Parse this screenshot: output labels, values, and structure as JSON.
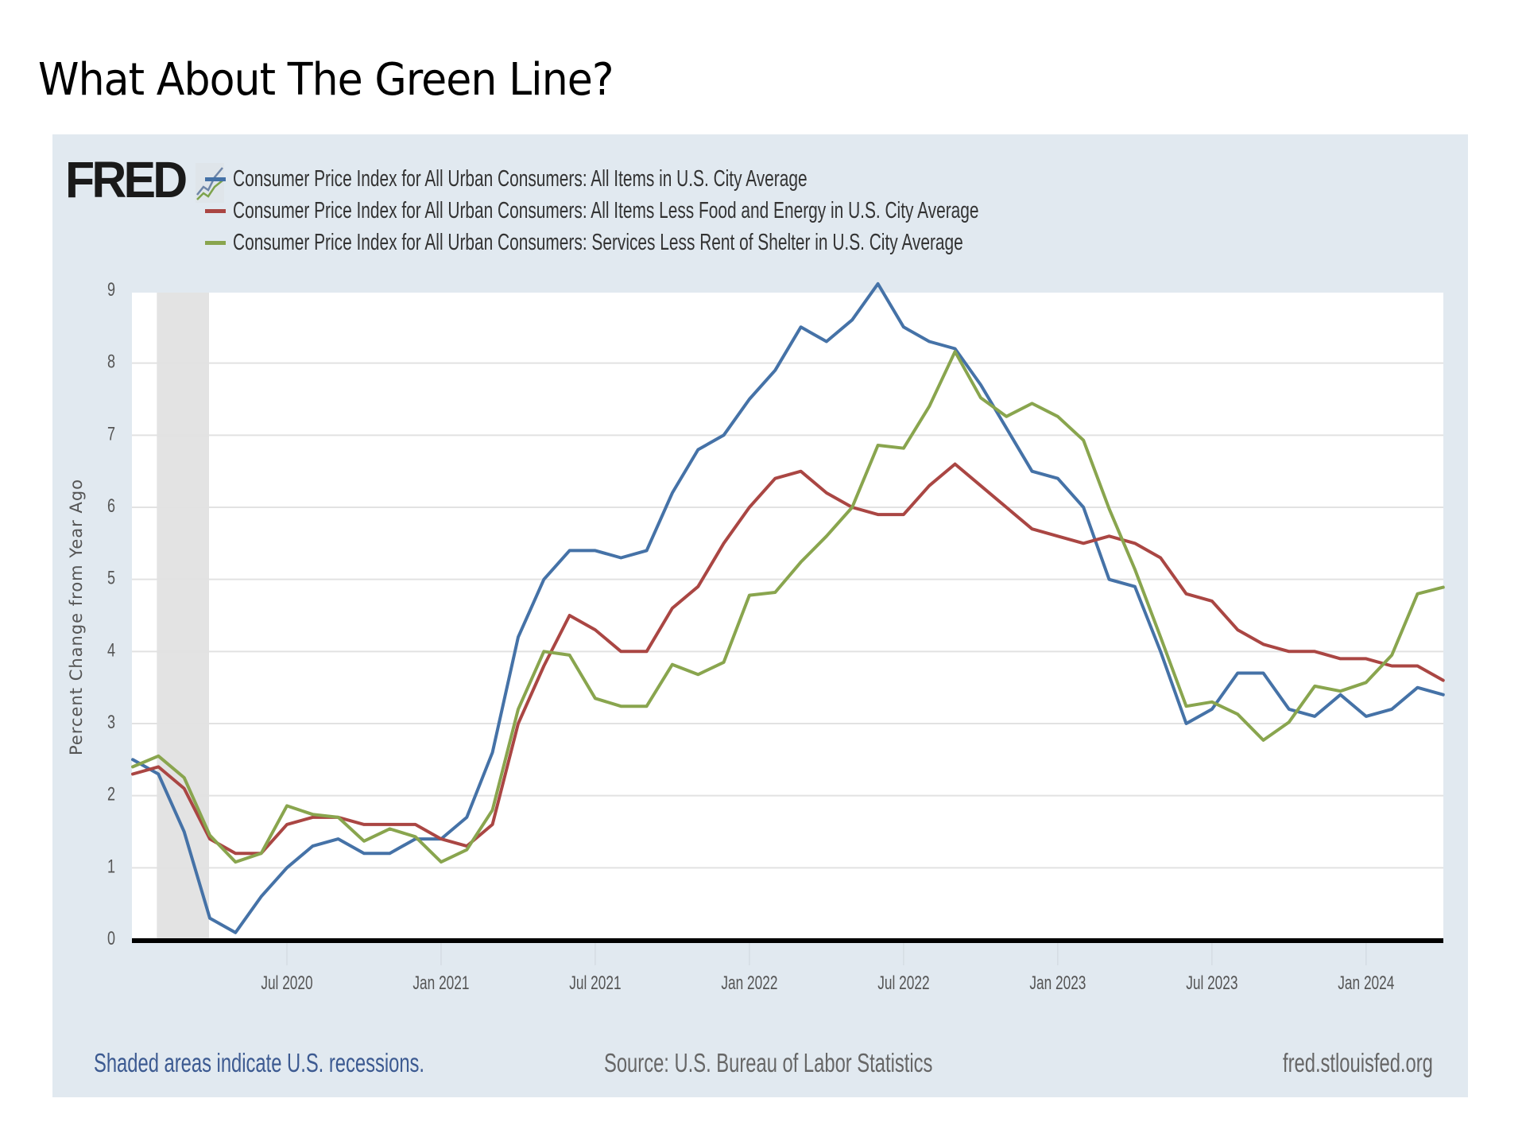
{
  "slide": {
    "title": "What About The Green Line?"
  },
  "branding": {
    "logo_text": "FRED",
    "logo_icon": "sparkline-chart-icon"
  },
  "footer": {
    "note": "Shaded areas indicate U.S. recessions.",
    "source": "Source: U.S. Bureau of Labor Statistics",
    "site": "fred.stlouisfed.org"
  },
  "chart_data": {
    "type": "line",
    "title": "",
    "xlabel": "",
    "ylabel": "Percent Change from Year Ago",
    "ylim": [
      0,
      9
    ],
    "yticks": [
      "0",
      "1",
      "2",
      "3",
      "4",
      "5",
      "6",
      "7",
      "8",
      "9"
    ],
    "grid": true,
    "legend_position": "top-left",
    "x_start": "Jan 2020",
    "x_end": "Apr 2024",
    "x_frequency": "monthly",
    "xtick_labels": [
      {
        "label": "Jul 2020",
        "index": 6
      },
      {
        "label": "Jan 2021",
        "index": 12
      },
      {
        "label": "Jul 2021",
        "index": 18
      },
      {
        "label": "Jan 2022",
        "index": 24
      },
      {
        "label": "Jul 2022",
        "index": 30
      },
      {
        "label": "Jan 2023",
        "index": 36
      },
      {
        "label": "Jul 2023",
        "index": 42
      },
      {
        "label": "Jan 2024",
        "index": 48
      }
    ],
    "recession_shading": {
      "start_index": 1,
      "end_index": 3
    },
    "x": [
      "Jan 2020",
      "Feb 2020",
      "Mar 2020",
      "Apr 2020",
      "May 2020",
      "Jun 2020",
      "Jul 2020",
      "Aug 2020",
      "Sep 2020",
      "Oct 2020",
      "Nov 2020",
      "Dec 2020",
      "Jan 2021",
      "Feb 2021",
      "Mar 2021",
      "Apr 2021",
      "May 2021",
      "Jun 2021",
      "Jul 2021",
      "Aug 2021",
      "Sep 2021",
      "Oct 2021",
      "Nov 2021",
      "Dec 2021",
      "Jan 2022",
      "Feb 2022",
      "Mar 2022",
      "Apr 2022",
      "May 2022",
      "Jun 2022",
      "Jul 2022",
      "Aug 2022",
      "Sep 2022",
      "Oct 2022",
      "Nov 2022",
      "Dec 2022",
      "Jan 2023",
      "Feb 2023",
      "Mar 2023",
      "Apr 2023",
      "May 2023",
      "Jun 2023",
      "Jul 2023",
      "Aug 2023",
      "Sep 2023",
      "Oct 2023",
      "Nov 2023",
      "Dec 2023",
      "Jan 2024",
      "Feb 2024",
      "Mar 2024",
      "Apr 2024"
    ],
    "series": [
      {
        "name": "Consumer Price Index for All Urban Consumers: All Items in U.S. City Average",
        "color": "#4572a7",
        "values": [
          2.5,
          2.3,
          1.5,
          0.3,
          0.1,
          0.6,
          1.0,
          1.3,
          1.4,
          1.2,
          1.2,
          1.4,
          1.4,
          1.7,
          2.6,
          4.2,
          5.0,
          5.4,
          5.4,
          5.3,
          5.4,
          6.2,
          6.8,
          7.0,
          7.5,
          7.9,
          8.5,
          8.3,
          8.6,
          9.1,
          8.5,
          8.3,
          8.2,
          7.7,
          7.1,
          6.5,
          6.4,
          6.0,
          5.0,
          4.9,
          4.0,
          3.0,
          3.2,
          3.7,
          3.7,
          3.2,
          3.1,
          3.4,
          3.1,
          3.2,
          3.5,
          3.4
        ]
      },
      {
        "name": "Consumer Price Index for All Urban Consumers: All Items Less Food and Energy in U.S. City Average",
        "color": "#aa4643",
        "values": [
          2.3,
          2.4,
          2.1,
          1.4,
          1.2,
          1.2,
          1.6,
          1.7,
          1.7,
          1.6,
          1.6,
          1.6,
          1.4,
          1.3,
          1.6,
          3.0,
          3.8,
          4.5,
          4.3,
          4.0,
          4.0,
          4.6,
          4.9,
          5.5,
          6.0,
          6.4,
          6.5,
          6.2,
          6.0,
          5.9,
          5.9,
          6.3,
          6.6,
          6.3,
          6.0,
          5.7,
          5.6,
          5.5,
          5.6,
          5.5,
          5.3,
          4.8,
          4.7,
          4.3,
          4.1,
          4.0,
          4.0,
          3.9,
          3.9,
          3.8,
          3.8,
          3.6
        ]
      },
      {
        "name": "Consumer Price Index for All Urban Consumers: Services Less Rent of Shelter in U.S. City Average",
        "color": "#89a54e",
        "values": [
          2.4,
          2.55,
          2.25,
          1.45,
          1.08,
          1.2,
          1.86,
          1.74,
          1.7,
          1.37,
          1.54,
          1.43,
          1.08,
          1.25,
          1.8,
          3.2,
          4.0,
          3.95,
          3.35,
          3.24,
          3.24,
          3.82,
          3.68,
          3.85,
          4.78,
          4.82,
          5.24,
          5.6,
          6.0,
          6.86,
          6.82,
          7.4,
          8.16,
          7.52,
          7.26,
          7.44,
          7.26,
          6.93,
          5.98,
          5.14,
          4.2,
          3.24,
          3.3,
          3.13,
          2.77,
          3.02,
          3.52,
          3.45,
          3.57,
          3.95,
          4.8,
          4.89
        ]
      }
    ]
  }
}
